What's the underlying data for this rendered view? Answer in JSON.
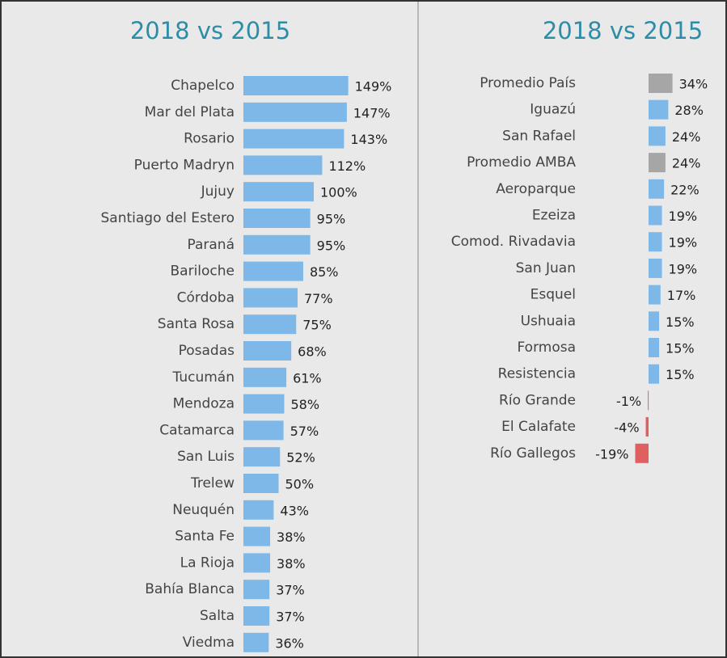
{
  "chart_data": [
    {
      "type": "bar",
      "orientation": "horizontal",
      "title": "2018 vs 2015",
      "categories": [
        "Chapelco",
        "Mar del Plata",
        "Rosario",
        "Puerto Madryn",
        "Jujuy",
        "Santiago del Estero",
        "Paraná",
        "Bariloche",
        "Córdoba",
        "Santa Rosa",
        "Posadas",
        "Tucumán",
        "Mendoza",
        "Catamarca",
        "San Luis",
        "Trelew",
        "Neuquén",
        "Santa Fe",
        "La Rioja",
        "Bahía Blanca",
        "Salta",
        "Viedma"
      ],
      "values": [
        149,
        147,
        143,
        112,
        100,
        95,
        95,
        85,
        77,
        75,
        68,
        61,
        58,
        57,
        52,
        50,
        43,
        38,
        38,
        37,
        37,
        36
      ],
      "value_labels": [
        "149%",
        "147%",
        "143%",
        "112%",
        "100%",
        "95%",
        "95%",
        "85%",
        "77%",
        "75%",
        "68%",
        "61%",
        "58%",
        "57%",
        "52%",
        "50%",
        "43%",
        "38%",
        "38%",
        "37%",
        "37%",
        "36%"
      ],
      "colors": [
        "#7db8e8",
        "#7db8e8",
        "#7db8e8",
        "#7db8e8",
        "#7db8e8",
        "#7db8e8",
        "#7db8e8",
        "#7db8e8",
        "#7db8e8",
        "#7db8e8",
        "#7db8e8",
        "#7db8e8",
        "#7db8e8",
        "#7db8e8",
        "#7db8e8",
        "#7db8e8",
        "#7db8e8",
        "#7db8e8",
        "#7db8e8",
        "#7db8e8",
        "#7db8e8",
        "#7db8e8"
      ]
    },
    {
      "type": "bar",
      "orientation": "horizontal",
      "title": "2018 vs 2015",
      "categories": [
        "Promedio País",
        "Iguazú",
        "San Rafael",
        "Promedio AMBA",
        "Aeroparque",
        "Ezeiza",
        "Comod. Rivadavia",
        "San Juan",
        "Esquel",
        "Ushuaia",
        "Formosa",
        "Resistencia",
        "Río Grande",
        "El Calafate",
        "Río Gallegos"
      ],
      "values": [
        34,
        28,
        24,
        24,
        22,
        19,
        19,
        19,
        17,
        15,
        15,
        15,
        -1,
        -4,
        -19
      ],
      "value_labels": [
        "34%",
        "28%",
        "24%",
        "24%",
        "22%",
        "19%",
        "19%",
        "19%",
        "17%",
        "15%",
        "15%",
        "15%",
        "-1%",
        "-4%",
        "-19%"
      ],
      "colors": [
        "#a6a6a6",
        "#7db8e8",
        "#7db8e8",
        "#a6a6a6",
        "#7db8e8",
        "#7db8e8",
        "#7db8e8",
        "#7db8e8",
        "#7db8e8",
        "#7db8e8",
        "#7db8e8",
        "#7db8e8",
        "#e06060",
        "#e06060",
        "#e06060"
      ]
    }
  ]
}
